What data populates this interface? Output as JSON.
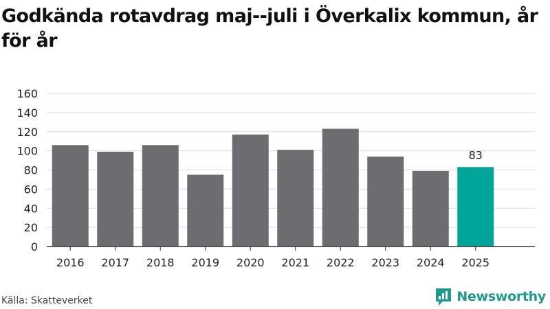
{
  "title": "Godkända rotavdrag maj--juli i Överkalix kommun, år för år",
  "source": "Källa: Skatteverket",
  "brand": {
    "name": "Newsworthy",
    "icon": "newsworthy-logo-icon"
  },
  "colors": {
    "bar": "#6d6c71",
    "highlight": "#00a59a",
    "grid": "#dadada",
    "axis": "#333333",
    "brand": "#1f9a8c"
  },
  "chart_data": {
    "type": "bar",
    "categories": [
      "2016",
      "2017",
      "2018",
      "2019",
      "2020",
      "2021",
      "2022",
      "2023",
      "2024",
      "2025"
    ],
    "values": [
      106,
      99,
      106,
      75,
      117,
      101,
      123,
      94,
      79,
      83
    ],
    "highlight_index": 9,
    "data_labels": [
      {
        "index": 9,
        "text": "83"
      }
    ],
    "title": "Godkända rotavdrag maj--juli i Överkalix kommun, år för år",
    "xlabel": "",
    "ylabel": "",
    "ylim": [
      0,
      160
    ],
    "yticks": [
      0,
      20,
      40,
      60,
      80,
      100,
      120,
      140,
      160
    ],
    "grid": true,
    "legend": "none"
  }
}
